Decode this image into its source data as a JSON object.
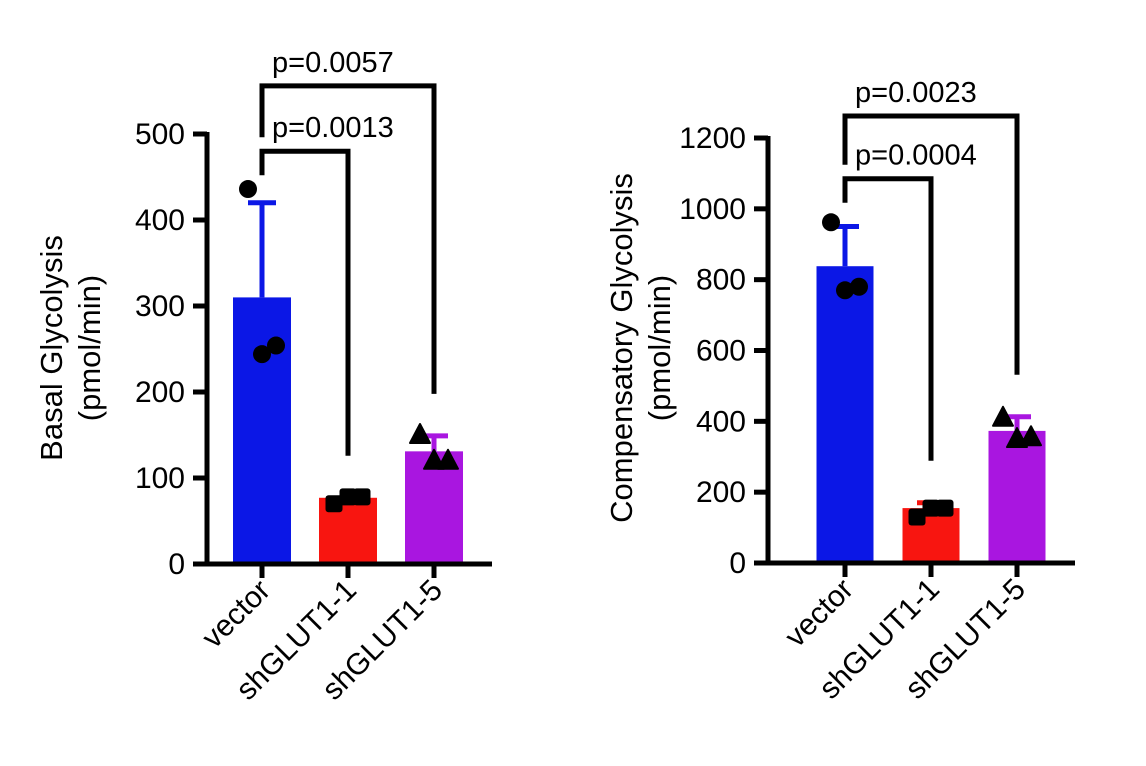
{
  "colors": {
    "vector": "#0b17e6",
    "shGLUT1-1": "#f81510",
    "shGLUT1-5": "#a916e0",
    "axis": "#000000",
    "marker": "#000000"
  },
  "chart_data": [
    {
      "type": "bar",
      "categories": [
        "vector",
        "shGLUT1-1",
        "shGLUT1-5"
      ],
      "values": [
        310,
        77,
        131
      ],
      "errors": [
        110,
        0,
        18
      ],
      "points": [
        [
          436,
          244,
          254
        ],
        [
          70,
          78,
          78
        ],
        [
          150,
          120,
          120
        ]
      ],
      "marker_shapes": [
        "circle",
        "square",
        "triangle"
      ],
      "ylabel_lines": [
        "Basal Glycolysis",
        "(pmol/min)"
      ],
      "ylim": [
        0,
        500
      ],
      "yticks": [
        "0",
        "100",
        "200",
        "300",
        "400",
        "500"
      ],
      "comparisons": [
        {
          "from": 0,
          "to": 1,
          "label": "p=0.0013",
          "y": 480
        },
        {
          "from": 0,
          "to": 2,
          "label": "p=0.0057",
          "y": 556
        }
      ]
    },
    {
      "type": "bar",
      "categories": [
        "vector",
        "shGLUT1-1",
        "shGLUT1-5"
      ],
      "values": [
        838,
        155,
        373
      ],
      "errors": [
        112,
        15,
        40
      ],
      "points": [
        [
          962,
          770,
          780
        ],
        [
          130,
          155,
          155
        ],
        [
          410,
          350,
          355
        ]
      ],
      "marker_shapes": [
        "circle",
        "square",
        "triangle"
      ],
      "ylabel_lines": [
        "Compensatory Glycolysis",
        "(pmol/min)"
      ],
      "ylim": [
        0,
        1200
      ],
      "yticks": [
        "0",
        "200",
        "400",
        "600",
        "800",
        "1000",
        "1200"
      ],
      "comparisons": [
        {
          "from": 0,
          "to": 1,
          "label": "p=0.0004",
          "y": 1085
        },
        {
          "from": 0,
          "to": 2,
          "label": "p=0.0023",
          "y": 1262
        }
      ]
    }
  ]
}
